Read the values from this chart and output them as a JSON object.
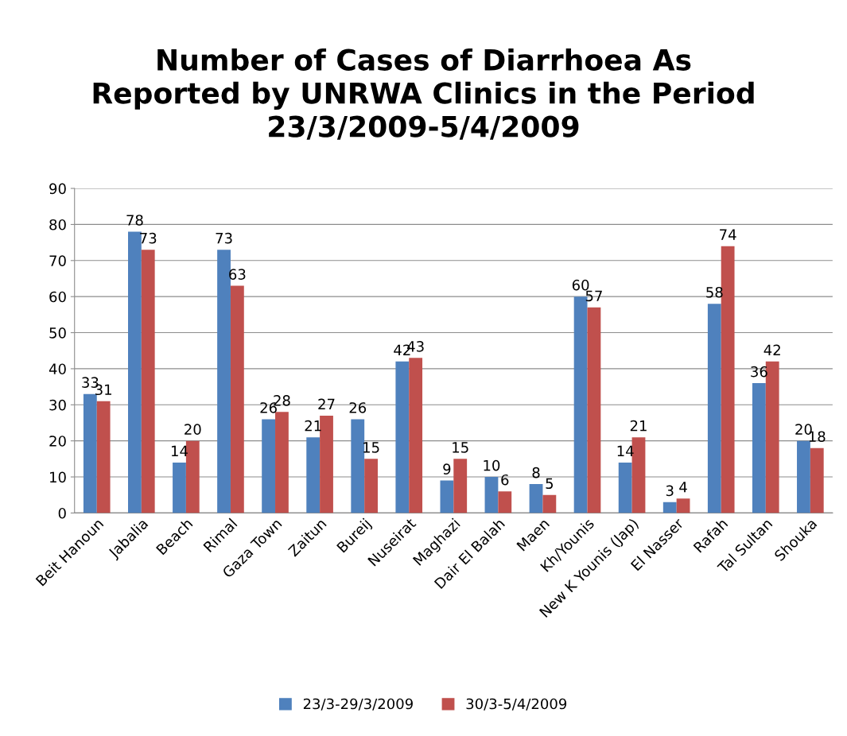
{
  "chart_data": {
    "type": "bar",
    "title": "Number of Cases of Diarrhoea As\nReported by UNRWA Clinics in the Period\n23/3/2009-5/4/2009",
    "categories": [
      "Beit Hanoun",
      "Jabalia",
      "Beach",
      "Rimal",
      "Gaza Town",
      "Zaitun",
      "Bureij",
      "Nuseirat",
      "Maghazi",
      "Dair El Balah",
      "Maen",
      "Kh/Younis",
      "New K Younis (Jap)",
      "El Nasser",
      "Rafah",
      "Tal Sultan",
      "Shouka"
    ],
    "series": [
      {
        "name": "23/3-29/3/2009",
        "color": "#4f81bd",
        "values": [
          33,
          78,
          14,
          73,
          26,
          21,
          26,
          42,
          9,
          10,
          8,
          60,
          14,
          3,
          58,
          36,
          20
        ]
      },
      {
        "name": "30/3-5/4/2009",
        "color": "#c0504d",
        "values": [
          31,
          73,
          20,
          63,
          28,
          27,
          15,
          43,
          15,
          6,
          5,
          57,
          21,
          4,
          74,
          42,
          18
        ]
      }
    ],
    "ylim": [
      0,
      90
    ],
    "yticks": [
      0,
      10,
      20,
      30,
      40,
      50,
      60,
      70,
      80,
      90
    ],
    "grid": "y",
    "legend": "bottom",
    "data_labels": true
  }
}
